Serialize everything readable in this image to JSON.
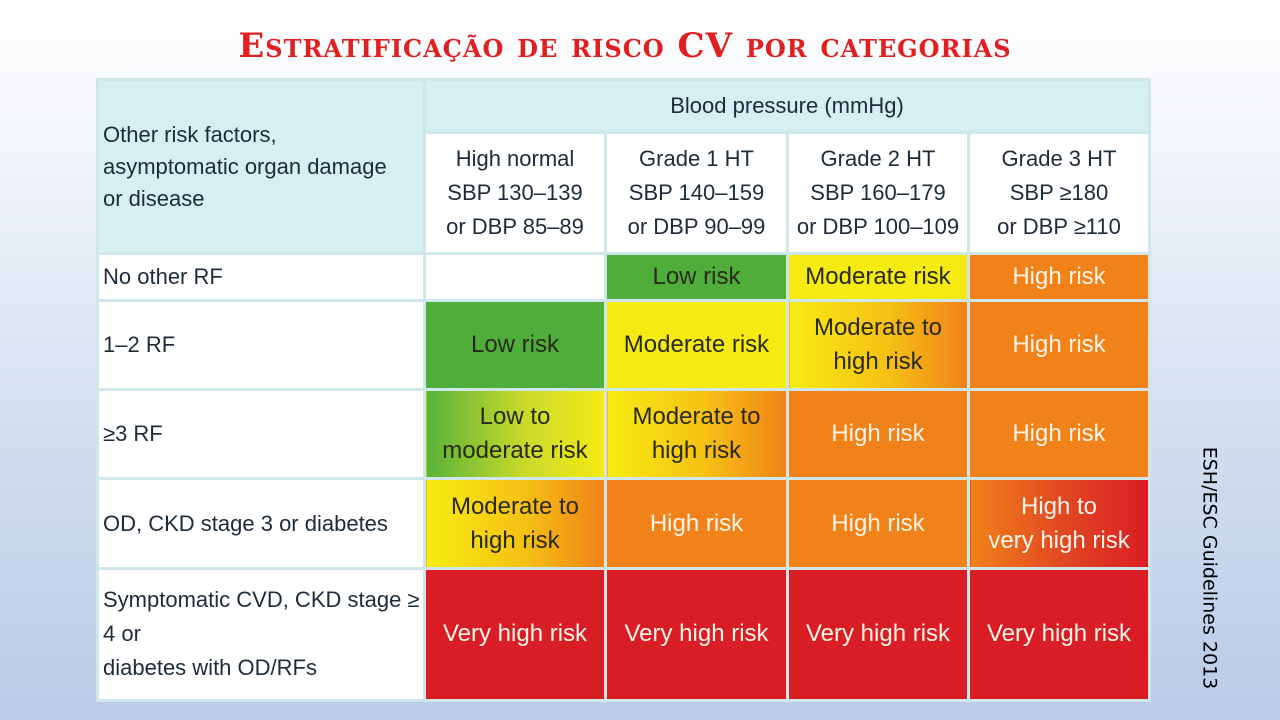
{
  "title": "Estratificação de risco CV por categorias",
  "source_note": "ESH/ESC Guidelines 2013",
  "table": {
    "corner_label": "Other risk factors,\nasymptomatic organ damage\nor disease",
    "bp_header": "Blood pressure (mmHg)",
    "columns": [
      "High normal\nSBP 130–139\nor DBP 85–89",
      "Grade 1 HT\nSBP 140–159\nor DBP 90–99",
      "Grade 2 HT\nSBP 160–179\nor DBP 100–109",
      "Grade 3 HT\nSBP ≥180\nor DBP ≥110"
    ],
    "rows": [
      {
        "label": "No other RF",
        "cells": [
          "",
          "Low risk",
          "Moderate risk",
          "High risk"
        ]
      },
      {
        "label": "1–2 RF",
        "cells": [
          "Low risk",
          "Moderate risk",
          "Moderate to\nhigh risk",
          "High risk"
        ]
      },
      {
        "label": "≥3 RF",
        "cells": [
          "Low to\nmoderate risk",
          "Moderate to\nhigh risk",
          "High risk",
          "High risk"
        ]
      },
      {
        "label": "OD, CKD stage 3 or diabetes",
        "cells": [
          "Moderate to\nhigh risk",
          "High risk",
          "High risk",
          "High to\nvery high risk"
        ]
      },
      {
        "label": "Symptomatic CVD, CKD stage ≥ 4 or\ndiabetes with OD/RFs",
        "cells": [
          "Very high risk",
          "Very high risk",
          "Very high risk",
          "Very high risk"
        ]
      }
    ]
  },
  "colors": {
    "title": "#e02020",
    "header_bg": "#d6eff0",
    "low_risk": "#4fae3a",
    "moderate_risk": "#f5ea12",
    "high_risk": "#f18219",
    "very_high_risk": "#d91d25"
  }
}
